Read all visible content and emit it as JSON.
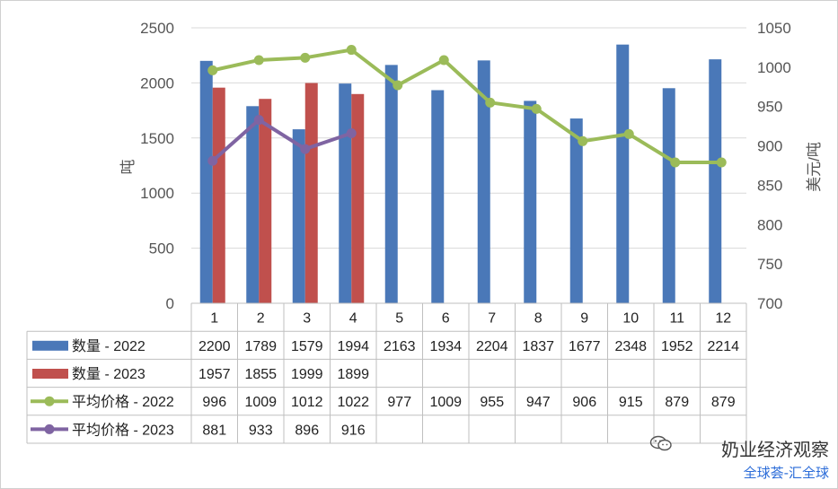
{
  "chart_data": {
    "type": "bar",
    "categories": [
      "1",
      "2",
      "3",
      "4",
      "5",
      "6",
      "7",
      "8",
      "9",
      "10",
      "11",
      "12"
    ],
    "y_left": {
      "label": "吨",
      "ticks": [
        "0",
        "500",
        "1000",
        "1500",
        "2000",
        "2500"
      ],
      "range": [
        0,
        2500
      ]
    },
    "y_right": {
      "label": "美元/吨",
      "ticks": [
        "700",
        "750",
        "800",
        "850",
        "900",
        "950",
        "1000",
        "1050"
      ],
      "range": [
        700,
        1050
      ]
    },
    "bar_series": [
      {
        "name": "数量 - 2022",
        "color": "#4a78b8",
        "values": [
          2200,
          1789,
          1579,
          1994,
          2163,
          1934,
          2204,
          1837,
          1677,
          2348,
          1952,
          2214
        ]
      },
      {
        "name": "数量 - 2023",
        "color": "#c0504d",
        "values": [
          1957,
          1855,
          1999,
          1899,
          null,
          null,
          null,
          null,
          null,
          null,
          null,
          null
        ]
      }
    ],
    "line_series": [
      {
        "name": "平均价格 - 2022",
        "color": "#9bbb59",
        "values": [
          996,
          1009,
          1012,
          1022,
          977,
          1009,
          955,
          947,
          906,
          915,
          879,
          879
        ]
      },
      {
        "name": "平均价格 - 2023",
        "color": "#7f64a2",
        "values": [
          881,
          933,
          896,
          916,
          null,
          null,
          null,
          null,
          null,
          null,
          null,
          null
        ]
      }
    ],
    "table_rows": [
      {
        "name": "数量 - 2022",
        "cells": [
          "2200",
          "1789",
          "1579",
          "1994",
          "2163",
          "1934",
          "2204",
          "1837",
          "1677",
          "2348",
          "1952",
          "2214"
        ]
      },
      {
        "name": "数量 - 2023",
        "cells": [
          "1957",
          "1855",
          "1999",
          "1899",
          "",
          "",
          "",
          "",
          "",
          "",
          "",
          ""
        ]
      },
      {
        "name": "平均价格 - 2022",
        "cells": [
          "996",
          "1009",
          "1012",
          "1022",
          "977",
          "1009",
          "955",
          "947",
          "906",
          "915",
          "879",
          "879"
        ]
      },
      {
        "name": "平均价格 - 2023",
        "cells": [
          "881",
          "933",
          "896",
          "916",
          "",
          "",
          "",
          "",
          "",
          "",
          "",
          ""
        ]
      }
    ]
  },
  "watermark": {
    "name": "奶业经济观察",
    "subtitle": "全球荟-汇全球",
    "icon": "wechat-icon"
  }
}
